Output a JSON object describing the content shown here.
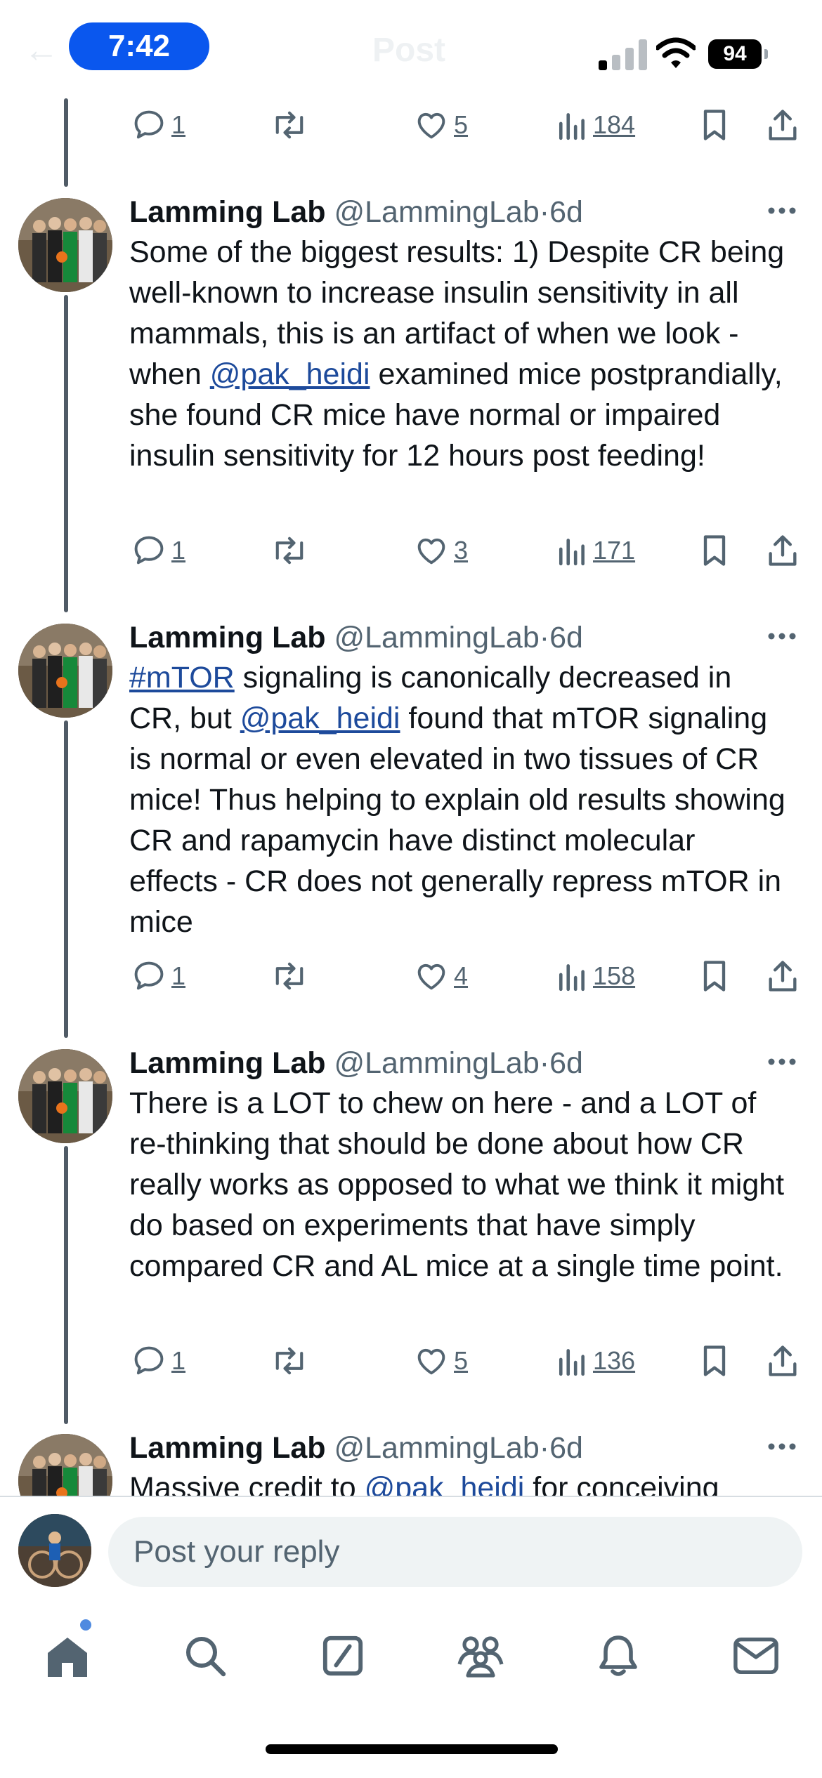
{
  "status_bar": {
    "time": "7:42",
    "battery": "94",
    "faded_header_title": "Post",
    "faded_back_icon": "arrow-left-icon",
    "icons": [
      "cellular-signal-icon",
      "wifi-icon",
      "battery-icon"
    ]
  },
  "top_actions": {
    "replies": "1",
    "likes": "5",
    "views": "184"
  },
  "tweets": [
    {
      "name": "Lamming Lab",
      "handle": "@LammingLab",
      "dot": "·",
      "age": "6d",
      "text_parts": [
        "Some of the biggest results: 1) Despite CR being well-known to increase insulin sensitivity in all mammals, this is an artifact of when we look - when ",
        "@pak_heidi",
        " examined mice postprandially, she found CR mice have normal or impaired insulin sensitivity for 12 hours post feeding!"
      ],
      "replies": "1",
      "likes": "3",
      "views": "171"
    },
    {
      "name": "Lamming Lab",
      "handle": "@LammingLab",
      "dot": "·",
      "age": "6d",
      "text_parts": [
        "#mTOR",
        " signaling is canonically decreased in CR, but ",
        "@pak_heidi",
        " found that mTOR signaling is normal or even elevated in two tissues of CR mice! Thus helping to explain old results showing CR and rapamycin have distinct molecular effects - CR does not generally repress mTOR in mice"
      ],
      "replies": "1",
      "likes": "4",
      "views": "158"
    },
    {
      "name": "Lamming Lab",
      "handle": "@LammingLab",
      "dot": "·",
      "age": "6d",
      "text_parts": [
        "There is a LOT to chew on here - and a LOT of re-thinking that should be done about how CR really works as opposed to what we think it might do based on experiments that have simply compared CR and AL mice at a single time point."
      ],
      "replies": "1",
      "likes": "5",
      "views": "136"
    },
    {
      "name": "Lamming Lab",
      "handle": "@LammingLab",
      "dot": "·",
      "age": "6d",
      "text_parts": [
        "Massive credit to ",
        "@pak_heidi",
        " for conceiving"
      ]
    }
  ],
  "reply_bar": {
    "placeholder": "Post your reply"
  },
  "tab_bar": {
    "items": [
      "home-icon",
      "search-icon",
      "compose-icon",
      "communities-icon",
      "notifications-icon",
      "messages-icon"
    ],
    "accent_dot_color": "#4f8ae0"
  },
  "colors": {
    "status_pill": "#0a57ee",
    "link": "#1d4a9b",
    "thread_line": "#505b66",
    "secondary_text": "#536471"
  }
}
